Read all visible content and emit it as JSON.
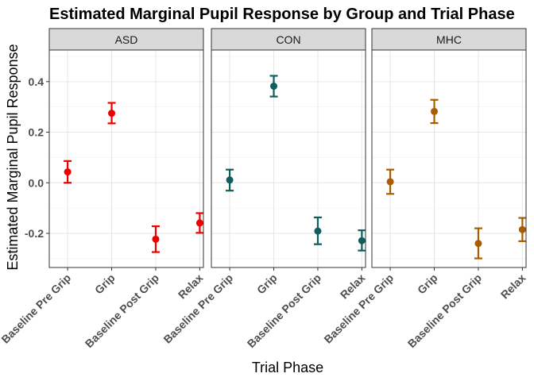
{
  "chart_data": {
    "type": "scatter",
    "title": "Estimated Marginal Pupil Response by Group and Trial Phase",
    "xlabel": "Trial Phase",
    "ylabel": "Estimated Marginal Pupil Response",
    "categories": [
      "Baseline Pre Grip",
      "Grip",
      "Baseline Post Grip",
      "Relax"
    ],
    "ylim": [
      -0.335,
      0.525
    ],
    "yticks": [
      -0.2,
      0.0,
      0.2,
      0.4
    ],
    "ytick_labels": [
      "-0.2",
      "0.0",
      "0.2",
      "0.4"
    ],
    "grid": true,
    "legend": "none",
    "panels": [
      {
        "name": "ASD",
        "color": "#ee0000",
        "estimates": [
          0.043,
          0.275,
          -0.223,
          -0.159
        ],
        "lower": [
          0.0,
          0.235,
          -0.274,
          -0.198
        ],
        "upper": [
          0.086,
          0.316,
          -0.172,
          -0.12
        ]
      },
      {
        "name": "CON",
        "color": "#0f5d5d",
        "estimates": [
          0.011,
          0.382,
          -0.191,
          -0.229
        ],
        "lower": [
          -0.031,
          0.341,
          -0.243,
          -0.268
        ],
        "upper": [
          0.052,
          0.423,
          -0.137,
          -0.188
        ]
      },
      {
        "name": "MHC",
        "color": "#a85e00",
        "estimates": [
          0.004,
          0.282,
          -0.24,
          -0.185
        ],
        "lower": [
          -0.044,
          0.236,
          -0.299,
          -0.231
        ],
        "upper": [
          0.052,
          0.328,
          -0.18,
          -0.139
        ]
      }
    ]
  }
}
